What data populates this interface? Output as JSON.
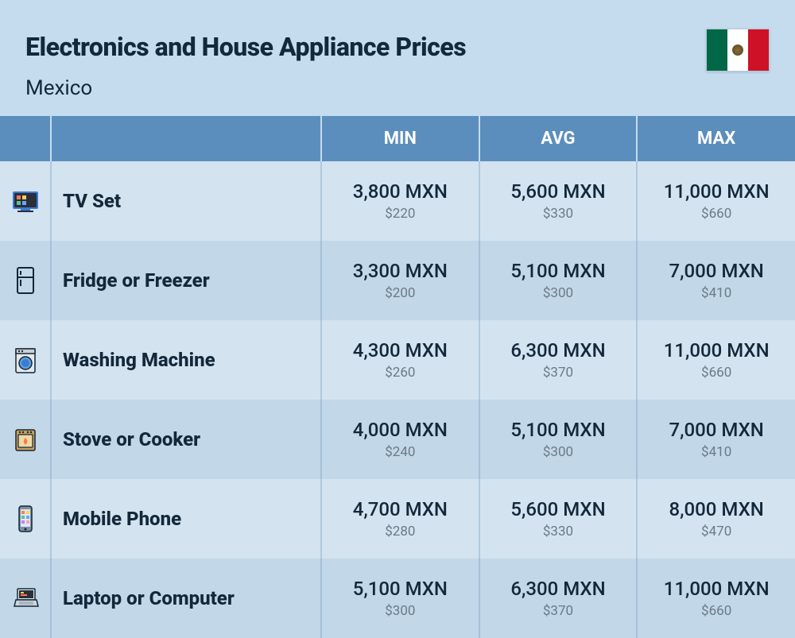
{
  "header": {
    "title": "Electronics and House Appliance Prices",
    "country": "Mexico",
    "flag_colors": {
      "left": "#006847",
      "middle": "#ffffff",
      "right": "#ce1126"
    }
  },
  "table": {
    "columns": [
      "",
      "",
      "MIN",
      "AVG",
      "MAX"
    ],
    "currency_main": "MXN",
    "currency_sub": "$",
    "header_bg": "#5b8ebc",
    "header_color": "#ffffff",
    "row_colors": [
      "#d3e3f0",
      "#c2d7e7"
    ],
    "rows": [
      {
        "icon": "tv",
        "name": "TV Set",
        "min": {
          "mxn": "3,800 MXN",
          "usd": "$220"
        },
        "avg": {
          "mxn": "5,600 MXN",
          "usd": "$330"
        },
        "max": {
          "mxn": "11,000 MXN",
          "usd": "$660"
        }
      },
      {
        "icon": "fridge",
        "name": "Fridge or Freezer",
        "min": {
          "mxn": "3,300 MXN",
          "usd": "$200"
        },
        "avg": {
          "mxn": "5,100 MXN",
          "usd": "$300"
        },
        "max": {
          "mxn": "7,000 MXN",
          "usd": "$410"
        }
      },
      {
        "icon": "washer",
        "name": "Washing Machine",
        "min": {
          "mxn": "4,300 MXN",
          "usd": "$260"
        },
        "avg": {
          "mxn": "6,300 MXN",
          "usd": "$370"
        },
        "max": {
          "mxn": "11,000 MXN",
          "usd": "$660"
        }
      },
      {
        "icon": "stove",
        "name": "Stove or Cooker",
        "min": {
          "mxn": "4,000 MXN",
          "usd": "$240"
        },
        "avg": {
          "mxn": "5,100 MXN",
          "usd": "$300"
        },
        "max": {
          "mxn": "7,000 MXN",
          "usd": "$410"
        }
      },
      {
        "icon": "phone",
        "name": "Mobile Phone",
        "min": {
          "mxn": "4,700 MXN",
          "usd": "$280"
        },
        "avg": {
          "mxn": "5,600 MXN",
          "usd": "$330"
        },
        "max": {
          "mxn": "8,000 MXN",
          "usd": "$470"
        }
      },
      {
        "icon": "laptop",
        "name": "Laptop or Computer",
        "min": {
          "mxn": "5,100 MXN",
          "usd": "$300"
        },
        "avg": {
          "mxn": "6,300 MXN",
          "usd": "$370"
        },
        "max": {
          "mxn": "11,000 MXN",
          "usd": "$660"
        }
      }
    ]
  },
  "colors": {
    "page_bg": "#c5dcee",
    "text_primary": "#13283a",
    "text_secondary": "#6a7a88"
  }
}
